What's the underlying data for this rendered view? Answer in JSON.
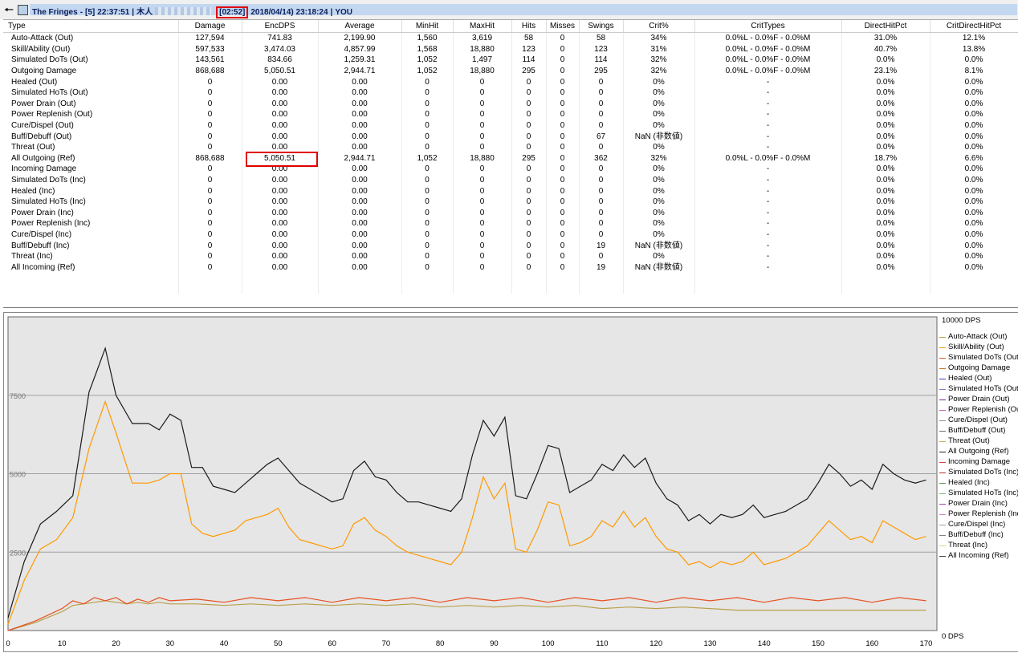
{
  "window": {
    "encounter_name": "The Fringes",
    "encounter_index": "[5]",
    "start_time": "22:37:51",
    "player_prefix": "木人",
    "duration": "[02:52]",
    "datetime": "2018/04/14) 23:18:24",
    "suffix": "YOU",
    "separator": "|",
    "back_icon": "back-arrow-icon",
    "app_icon": "window-app-icon"
  },
  "table": {
    "columns": [
      "Type",
      "Damage",
      "EncDPS",
      "Average",
      "MinHit",
      "MaxHit",
      "Hits",
      "Misses",
      "Swings",
      "Crit%",
      "CritTypes",
      "DirectHitPct",
      "CritDirectHitPct"
    ],
    "rows": [
      [
        "Auto-Attack (Out)",
        "127,594",
        "741.83",
        "2,199.90",
        "1,560",
        "3,619",
        "58",
        "0",
        "58",
        "34%",
        "0.0%L - 0.0%F - 0.0%M",
        "31.0%",
        "12.1%"
      ],
      [
        "Skill/Ability (Out)",
        "597,533",
        "3,474.03",
        "4,857.99",
        "1,568",
        "18,880",
        "123",
        "0",
        "123",
        "31%",
        "0.0%L - 0.0%F - 0.0%M",
        "40.7%",
        "13.8%"
      ],
      [
        "Simulated DoTs (Out)",
        "143,561",
        "834.66",
        "1,259.31",
        "1,052",
        "1,497",
        "114",
        "0",
        "114",
        "32%",
        "0.0%L - 0.0%F - 0.0%M",
        "0.0%",
        "0.0%"
      ],
      [
        "Outgoing Damage",
        "868,688",
        "5,050.51",
        "2,944.71",
        "1,052",
        "18,880",
        "295",
        "0",
        "295",
        "32%",
        "0.0%L - 0.0%F - 0.0%M",
        "23.1%",
        "8.1%"
      ],
      [
        "Healed (Out)",
        "0",
        "0.00",
        "0.00",
        "0",
        "0",
        "0",
        "0",
        "0",
        "0%",
        "-",
        "0.0%",
        "0.0%"
      ],
      [
        "Simulated HoTs (Out)",
        "0",
        "0.00",
        "0.00",
        "0",
        "0",
        "0",
        "0",
        "0",
        "0%",
        "-",
        "0.0%",
        "0.0%"
      ],
      [
        "Power Drain (Out)",
        "0",
        "0.00",
        "0.00",
        "0",
        "0",
        "0",
        "0",
        "0",
        "0%",
        "-",
        "0.0%",
        "0.0%"
      ],
      [
        "Power Replenish (Out)",
        "0",
        "0.00",
        "0.00",
        "0",
        "0",
        "0",
        "0",
        "0",
        "0%",
        "-",
        "0.0%",
        "0.0%"
      ],
      [
        "Cure/Dispel (Out)",
        "0",
        "0.00",
        "0.00",
        "0",
        "0",
        "0",
        "0",
        "0",
        "0%",
        "-",
        "0.0%",
        "0.0%"
      ],
      [
        "Buff/Debuff (Out)",
        "0",
        "0.00",
        "0.00",
        "0",
        "0",
        "0",
        "0",
        "67",
        "NaN (非数値)",
        "-",
        "0.0%",
        "0.0%"
      ],
      [
        "Threat (Out)",
        "0",
        "0.00",
        "0.00",
        "0",
        "0",
        "0",
        "0",
        "0",
        "0%",
        "-",
        "0.0%",
        "0.0%"
      ],
      [
        "All Outgoing (Ref)",
        "868,688",
        "5,050.51",
        "2,944.71",
        "1,052",
        "18,880",
        "295",
        "0",
        "362",
        "32%",
        "0.0%L - 0.0%F - 0.0%M",
        "18.7%",
        "6.6%"
      ],
      [
        "Incoming Damage",
        "0",
        "0.00",
        "0.00",
        "0",
        "0",
        "0",
        "0",
        "0",
        "0%",
        "-",
        "0.0%",
        "0.0%"
      ],
      [
        "Simulated DoTs (Inc)",
        "0",
        "0.00",
        "0.00",
        "0",
        "0",
        "0",
        "0",
        "0",
        "0%",
        "-",
        "0.0%",
        "0.0%"
      ],
      [
        "Healed (Inc)",
        "0",
        "0.00",
        "0.00",
        "0",
        "0",
        "0",
        "0",
        "0",
        "0%",
        "-",
        "0.0%",
        "0.0%"
      ],
      [
        "Simulated HoTs (Inc)",
        "0",
        "0.00",
        "0.00",
        "0",
        "0",
        "0",
        "0",
        "0",
        "0%",
        "-",
        "0.0%",
        "0.0%"
      ],
      [
        "Power Drain (Inc)",
        "0",
        "0.00",
        "0.00",
        "0",
        "0",
        "0",
        "0",
        "0",
        "0%",
        "-",
        "0.0%",
        "0.0%"
      ],
      [
        "Power Replenish (Inc)",
        "0",
        "0.00",
        "0.00",
        "0",
        "0",
        "0",
        "0",
        "0",
        "0%",
        "-",
        "0.0%",
        "0.0%"
      ],
      [
        "Cure/Dispel (Inc)",
        "0",
        "0.00",
        "0.00",
        "0",
        "0",
        "0",
        "0",
        "0",
        "0%",
        "-",
        "0.0%",
        "0.0%"
      ],
      [
        "Buff/Debuff (Inc)",
        "0",
        "0.00",
        "0.00",
        "0",
        "0",
        "0",
        "0",
        "19",
        "NaN (非数値)",
        "-",
        "0.0%",
        "0.0%"
      ],
      [
        "Threat (Inc)",
        "0",
        "0.00",
        "0.00",
        "0",
        "0",
        "0",
        "0",
        "0",
        "0%",
        "-",
        "0.0%",
        "0.0%"
      ],
      [
        "All Incoming (Ref)",
        "0",
        "0.00",
        "0.00",
        "0",
        "0",
        "0",
        "0",
        "19",
        "NaN (非数値)",
        "-",
        "0.0%",
        "0.0%"
      ]
    ]
  },
  "graph": {
    "scale_top": "10000 DPS",
    "scale_bottom": "0 DPS",
    "legend": [
      {
        "label": "Auto-Attack (Out)",
        "color": "#b8a04a"
      },
      {
        "label": "Skill/Ability (Out)",
        "color": "#ff9900"
      },
      {
        "label": "Simulated DoTs (Out)",
        "color": "#e85020"
      },
      {
        "label": "Outgoing Damage",
        "color": "#d07828"
      },
      {
        "label": "Healed (Out)",
        "color": "#3a3ab8"
      },
      {
        "label": "Simulated HoTs (Out)",
        "color": "#9070c0"
      },
      {
        "label": "Power Drain (Out)",
        "color": "#8020a0"
      },
      {
        "label": "Power Replenish (Out)",
        "color": "#c060c0"
      },
      {
        "label": "Cure/Dispel (Out)",
        "color": "#909090"
      },
      {
        "label": "Buff/Debuff (Out)",
        "color": "#707070"
      },
      {
        "label": "Threat (Out)",
        "color": "#c0b060"
      },
      {
        "label": "All Outgoing (Ref)",
        "color": "#222222"
      },
      {
        "label": "Incoming Damage",
        "color": "#e04040"
      },
      {
        "label": "Simulated DoTs (Inc)",
        "color": "#c03030"
      },
      {
        "label": "Healed (Inc)",
        "color": "#60a060"
      },
      {
        "label": "Simulated HoTs (Inc)",
        "color": "#70c070"
      },
      {
        "label": "Power Drain (Inc)",
        "color": "#b040b0"
      },
      {
        "label": "Power Replenish (Inc)",
        "color": "#d080d0"
      },
      {
        "label": "Cure/Dispel (Inc)",
        "color": "#a0a0a0"
      },
      {
        "label": "Buff/Debuff (Inc)",
        "color": "#808080"
      },
      {
        "label": "Threat (Inc)",
        "color": "#e0d080"
      },
      {
        "label": "All Incoming (Ref)",
        "color": "#404040"
      }
    ]
  },
  "chart_data": {
    "type": "line",
    "x_tick_labels": [
      "0",
      "10",
      "20",
      "30",
      "40",
      "50",
      "60",
      "70",
      "80",
      "90",
      "100",
      "110",
      "120",
      "130",
      "140",
      "150",
      "160",
      "170"
    ],
    "y_tick_labels": [
      {
        "value": 2500,
        "label": "2500"
      },
      {
        "value": 5000,
        "label": "5000"
      },
      {
        "value": 7500,
        "label": "7500"
      }
    ],
    "xlim": [
      0,
      172
    ],
    "ylim": [
      0,
      10000
    ],
    "grid": true,
    "legend_position": "right",
    "series": [
      {
        "name": "All Outgoing (Ref)",
        "color": "#1a1a1a",
        "x": [
          0,
          3,
          6,
          9,
          12,
          15,
          18,
          20,
          23,
          26,
          28,
          30,
          32,
          34,
          36,
          38,
          40,
          42,
          44,
          46,
          48,
          50,
          52,
          54,
          56,
          58,
          60,
          62,
          64,
          66,
          68,
          70,
          72,
          74,
          76,
          78,
          80,
          82,
          84,
          86,
          88,
          90,
          92,
          94,
          96,
          98,
          100,
          102,
          104,
          106,
          108,
          110,
          112,
          114,
          116,
          118,
          120,
          122,
          124,
          126,
          128,
          130,
          132,
          134,
          136,
          138,
          140,
          142,
          144,
          146,
          148,
          150,
          152,
          154,
          156,
          158,
          160,
          162,
          164,
          166,
          168,
          170
        ],
        "y": [
          400,
          2200,
          3400,
          3800,
          4300,
          7600,
          9000,
          7500,
          6600,
          6600,
          6400,
          6900,
          6700,
          5200,
          5200,
          4600,
          4500,
          4400,
          4700,
          5000,
          5300,
          5500,
          5100,
          4700,
          4500,
          4300,
          4100,
          4200,
          5100,
          5400,
          4900,
          4800,
          4400,
          4100,
          4100,
          4000,
          3900,
          3800,
          4200,
          5600,
          6700,
          6200,
          6800,
          4300,
          4200,
          5000,
          5900,
          5800,
          4400,
          4600,
          4800,
          5300,
          5100,
          5600,
          5200,
          5500,
          4700,
          4200,
          4000,
          3500,
          3700,
          3400,
          3700,
          3600,
          3700,
          4000,
          3600,
          3700,
          3800,
          4000,
          4200,
          4700,
          5300,
          5000,
          4600,
          4800,
          4500,
          5300,
          5000,
          4800,
          4700,
          4800
        ]
      },
      {
        "name": "Skill/Ability (Out)",
        "color": "#ff9900",
        "x": [
          0,
          3,
          6,
          9,
          12,
          15,
          18,
          20,
          23,
          26,
          28,
          30,
          32,
          34,
          36,
          38,
          40,
          42,
          44,
          46,
          48,
          50,
          52,
          54,
          56,
          58,
          60,
          62,
          64,
          66,
          68,
          70,
          72,
          74,
          76,
          78,
          80,
          82,
          84,
          86,
          88,
          90,
          92,
          94,
          96,
          98,
          100,
          102,
          104,
          106,
          108,
          110,
          112,
          114,
          116,
          118,
          120,
          122,
          124,
          126,
          128,
          130,
          132,
          134,
          136,
          138,
          140,
          142,
          144,
          146,
          148,
          150,
          152,
          154,
          156,
          158,
          160,
          162,
          164,
          166,
          168,
          170
        ],
        "y": [
          200,
          1600,
          2600,
          2900,
          3600,
          5800,
          7300,
          6300,
          4700,
          4700,
          4800,
          5000,
          5000,
          3400,
          3100,
          3000,
          3100,
          3200,
          3500,
          3600,
          3700,
          3900,
          3300,
          2900,
          2800,
          2700,
          2600,
          2700,
          3400,
          3600,
          3200,
          3000,
          2700,
          2500,
          2400,
          2300,
          2200,
          2100,
          2500,
          3600,
          4900,
          4200,
          4700,
          2600,
          2500,
          3200,
          4100,
          4000,
          2700,
          2800,
          3000,
          3500,
          3300,
          3800,
          3300,
          3600,
          3000,
          2600,
          2500,
          2100,
          2200,
          2000,
          2200,
          2100,
          2200,
          2500,
          2100,
          2200,
          2300,
          2500,
          2700,
          3100,
          3500,
          3200,
          2900,
          3000,
          2800,
          3500,
          3300,
          3100,
          2900,
          3000
        ]
      },
      {
        "name": "Simulated DoTs (Out)",
        "color": "#e85020",
        "x": [
          0,
          5,
          10,
          12,
          14,
          16,
          18,
          20,
          22,
          24,
          26,
          28,
          30,
          35,
          40,
          45,
          50,
          55,
          60,
          65,
          70,
          75,
          80,
          85,
          90,
          95,
          100,
          105,
          110,
          115,
          120,
          125,
          130,
          135,
          140,
          145,
          150,
          155,
          160,
          165,
          170
        ],
        "y": [
          0,
          300,
          700,
          950,
          850,
          1050,
          950,
          1050,
          850,
          1000,
          900,
          1050,
          950,
          1000,
          900,
          1050,
          950,
          1050,
          900,
          1050,
          950,
          1050,
          900,
          1050,
          950,
          1050,
          900,
          1050,
          950,
          1050,
          900,
          1050,
          950,
          1050,
          900,
          1050,
          950,
          1050,
          900,
          1050,
          950
        ]
      },
      {
        "name": "Auto-Attack (Out)",
        "color": "#b8a04a",
        "x": [
          0,
          5,
          10,
          12,
          14,
          16,
          18,
          20,
          22,
          24,
          26,
          28,
          30,
          35,
          40,
          45,
          50,
          55,
          60,
          65,
          70,
          75,
          80,
          85,
          90,
          95,
          100,
          105,
          110,
          115,
          120,
          125,
          130,
          135,
          140,
          145,
          150,
          155,
          160,
          165,
          170
        ],
        "y": [
          0,
          250,
          600,
          800,
          850,
          900,
          950,
          900,
          850,
          900,
          850,
          900,
          850,
          850,
          800,
          850,
          800,
          850,
          800,
          850,
          800,
          850,
          750,
          800,
          750,
          800,
          750,
          800,
          700,
          750,
          700,
          750,
          700,
          650,
          650,
          650,
          650,
          650,
          650,
          650,
          650
        ]
      }
    ]
  }
}
